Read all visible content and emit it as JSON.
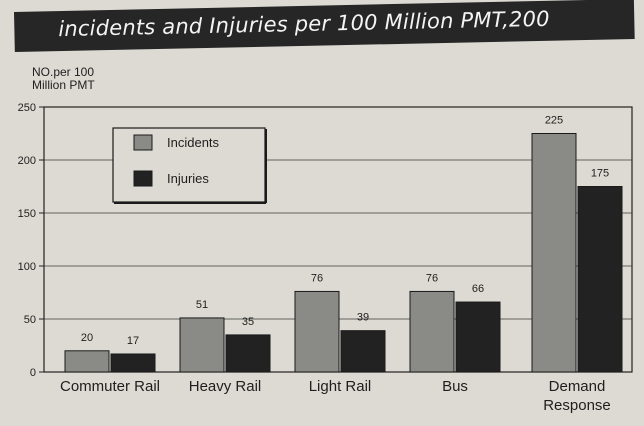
{
  "chart_data": {
    "type": "bar",
    "title": "incidents and Injuries per 100 Million PMT,200",
    "ylabel_lines": [
      "NO.per 100",
      "Million PMT"
    ],
    "categories": [
      [
        "Commuter Rail"
      ],
      [
        "Heavy Rail"
      ],
      [
        "Light Rail"
      ],
      [
        "Bus"
      ],
      [
        "Demand",
        "Response"
      ]
    ],
    "series": [
      {
        "name": "Incidents",
        "values": [
          20,
          51,
          76,
          76,
          225
        ],
        "color": "#8a8a86"
      },
      {
        "name": "Injuries",
        "values": [
          17,
          35,
          39,
          66,
          175
        ],
        "color": "#222222"
      }
    ],
    "yticks": [
      0,
      50,
      100,
      150,
      200,
      250
    ],
    "ylim": [
      0,
      250
    ],
    "grid": true,
    "legend_position": "top-left"
  }
}
